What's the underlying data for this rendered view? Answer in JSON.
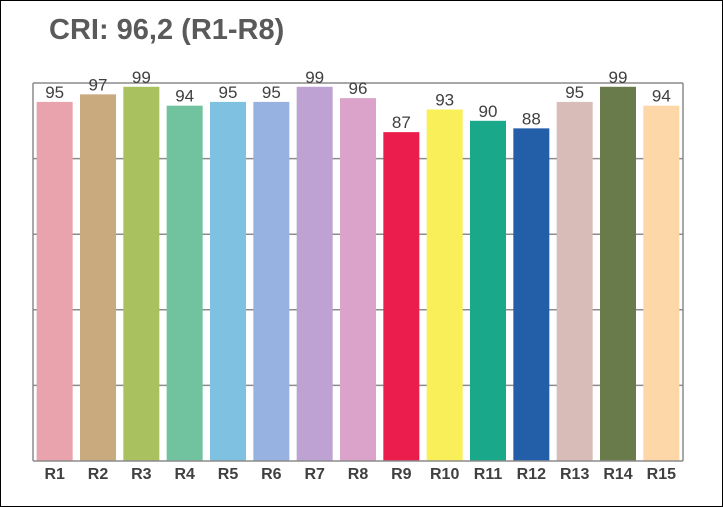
{
  "chart_data": {
    "type": "bar",
    "title": "CRI: 96,2 (R1-R8)",
    "categories": [
      "R1",
      "R2",
      "R3",
      "R4",
      "R5",
      "R6",
      "R7",
      "R8",
      "R9",
      "R10",
      "R11",
      "R12",
      "R13",
      "R14",
      "R15"
    ],
    "values": [
      95,
      97,
      99,
      94,
      95,
      95,
      99,
      96,
      87,
      93,
      90,
      88,
      95,
      99,
      94
    ],
    "colors": [
      "#e8a3ad",
      "#c9aa7e",
      "#a9c15f",
      "#70c39e",
      "#7ec1e1",
      "#97b2e1",
      "#bea2d3",
      "#dca3ca",
      "#eb1d4d",
      "#f8ef59",
      "#19a98a",
      "#235ea9",
      "#d8bcb8",
      "#6a7b4b",
      "#fdd7a7"
    ],
    "ylim": [
      0,
      100
    ],
    "yticks": [
      0,
      20,
      40,
      60,
      80,
      100
    ],
    "grid": true,
    "show_y_tick_labels": false,
    "legend": "none",
    "xlabel": "",
    "ylabel": ""
  }
}
